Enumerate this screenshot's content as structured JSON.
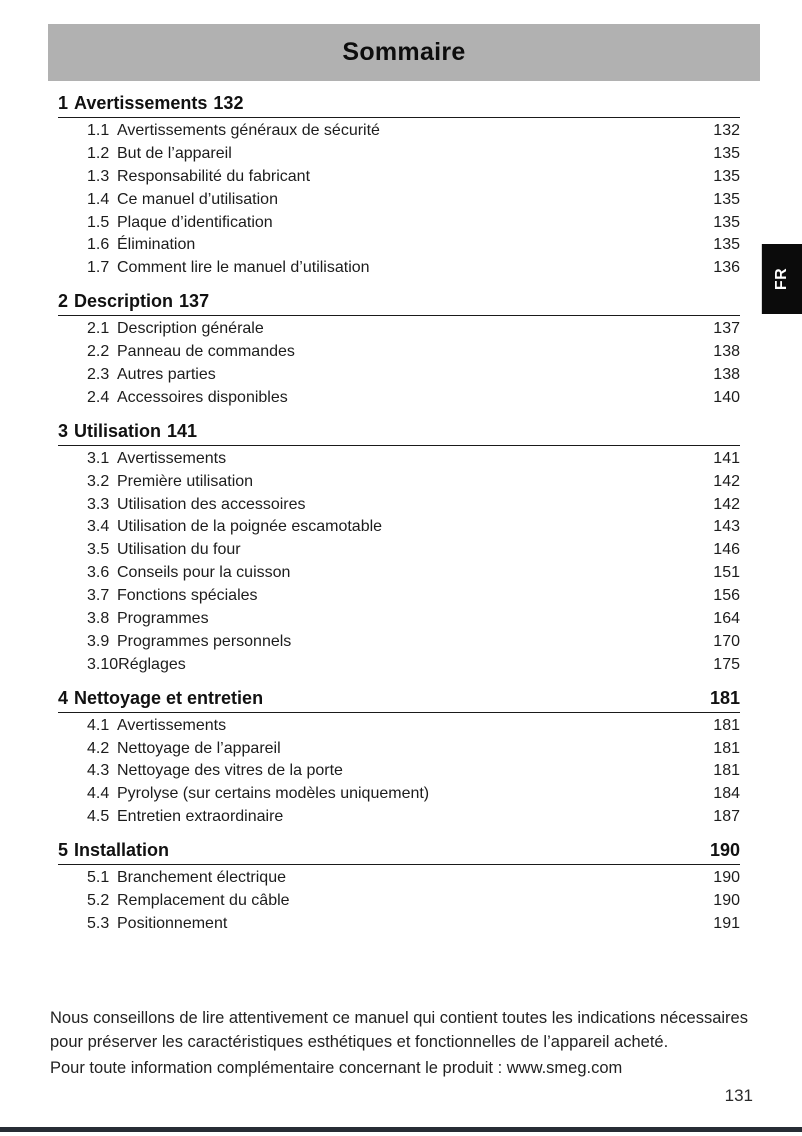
{
  "page": {
    "title": "Sommaire",
    "language_tab": "FR",
    "page_number": "131",
    "footer": {
      "line1": "Nous conseillons de lire attentivement ce manuel qui contient toutes les indications nécessaires pour préserver les caractéristiques esthétiques et fonctionnelles de l’appareil acheté.",
      "line2": "Pour toute information complémentaire concernant le produit : www.smeg.com"
    }
  },
  "colors": {
    "header_bg": "#b1b1b1",
    "tab_bg": "#0b0b0b",
    "tab_text": "#ffffff",
    "bottom_bar": "#272d35",
    "text": "#1c1c1c"
  },
  "toc": {
    "sections": [
      {
        "number": "1",
        "title": "Avertissements",
        "page": "132",
        "page_inline": true,
        "items": [
          {
            "number": "1.1",
            "title": "Avertissements généraux de sécurité",
            "page": "132"
          },
          {
            "number": "1.2",
            "title": "But de l’appareil",
            "page": "135"
          },
          {
            "number": "1.3",
            "title": "Responsabilité du fabricant",
            "page": "135"
          },
          {
            "number": "1.4",
            "title": "Ce manuel d’utilisation",
            "page": "135"
          },
          {
            "number": "1.5",
            "title": "Plaque d’identification",
            "page": "135"
          },
          {
            "number": "1.6",
            "title": "Élimination",
            "page": "135"
          },
          {
            "number": "1.7",
            "title": "Comment lire le manuel d’utilisation",
            "page": "136"
          }
        ]
      },
      {
        "number": "2",
        "title": "Description",
        "page": "137",
        "page_inline": true,
        "items": [
          {
            "number": "2.1",
            "title": "Description générale",
            "page": "137"
          },
          {
            "number": "2.2",
            "title": "Panneau de commandes",
            "page": "138"
          },
          {
            "number": "2.3",
            "title": "Autres parties",
            "page": "138"
          },
          {
            "number": "2.4",
            "title": "Accessoires disponibles",
            "page": "140"
          }
        ]
      },
      {
        "number": "3",
        "title": "Utilisation",
        "page": "141",
        "page_inline": true,
        "items": [
          {
            "number": "3.1",
            "title": "Avertissements",
            "page": "141"
          },
          {
            "number": "3.2",
            "title": "Première utilisation",
            "page": "142"
          },
          {
            "number": "3.3",
            "title": "Utilisation des accessoires",
            "page": "142"
          },
          {
            "number": "3.4",
            "title": "Utilisation de la poignée escamotable",
            "page": "143"
          },
          {
            "number": "3.5",
            "title": "Utilisation du four",
            "page": "146"
          },
          {
            "number": "3.6",
            "title": "Conseils pour la cuisson",
            "page": "151"
          },
          {
            "number": "3.7",
            "title": "Fonctions spéciales",
            "page": "156"
          },
          {
            "number": "3.8",
            "title": "Programmes",
            "page": "164"
          },
          {
            "number": "3.9",
            "title": "Programmes personnels",
            "page": "170"
          },
          {
            "number": "3.10",
            "title": "Réglages",
            "page": "175"
          }
        ]
      },
      {
        "number": "4",
        "title": "Nettoyage et entretien",
        "page": "181",
        "page_inline": false,
        "items": [
          {
            "number": "4.1",
            "title": "Avertissements",
            "page": "181"
          },
          {
            "number": "4.2",
            "title": "Nettoyage de l’appareil",
            "page": "181"
          },
          {
            "number": "4.3",
            "title": "Nettoyage des vitres de la porte",
            "page": "181"
          },
          {
            "number": "4.4",
            "title": "Pyrolyse (sur certains modèles uniquement)",
            "page": "184"
          },
          {
            "number": "4.5",
            "title": "Entretien extraordinaire",
            "page": "187"
          }
        ]
      },
      {
        "number": "5",
        "title": "Installation",
        "page": "190",
        "page_inline": false,
        "items": [
          {
            "number": "5.1",
            "title": "Branchement électrique",
            "page": "190"
          },
          {
            "number": "5.2",
            "title": "Remplacement du câble",
            "page": "190"
          },
          {
            "number": "5.3",
            "title": "Positionnement",
            "page": "191"
          }
        ]
      }
    ]
  }
}
